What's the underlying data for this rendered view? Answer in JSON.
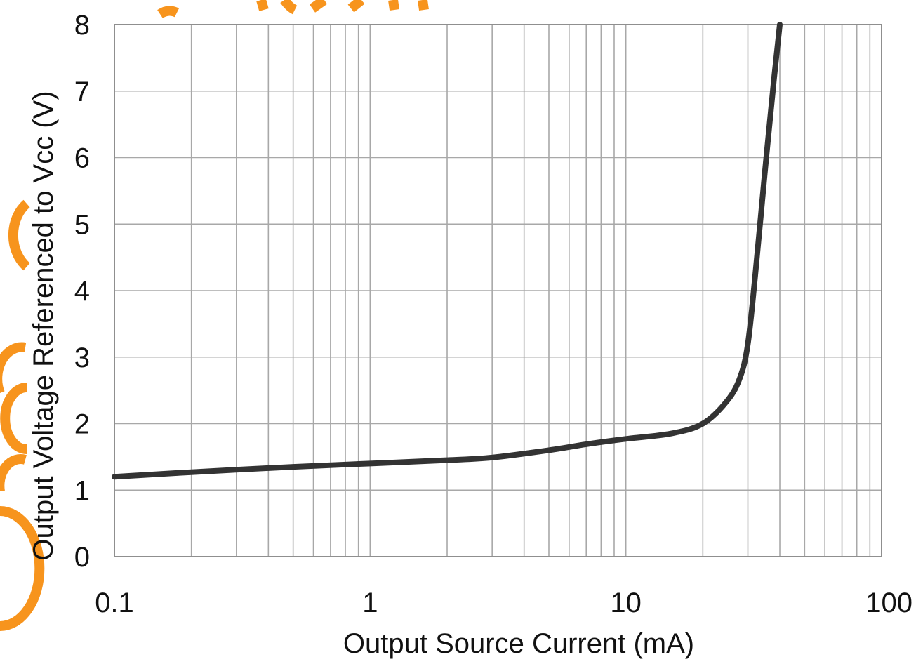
{
  "chart_data": {
    "type": "line",
    "title": "",
    "xlabel": "Output Source Current (mA)",
    "ylabel": "Output Voltage Referenced to Vcc (V)",
    "x_scale": "log",
    "xlim": [
      0.1,
      100
    ],
    "ylim": [
      0,
      8
    ],
    "x_ticks": [
      0.1,
      1,
      10,
      100
    ],
    "x_tick_labels": [
      "0.1",
      "1",
      "10",
      "100"
    ],
    "y_ticks": [
      0,
      1,
      2,
      3,
      4,
      5,
      6,
      7,
      8
    ],
    "y_tick_labels": [
      "0",
      "1",
      "2",
      "3",
      "4",
      "5",
      "6",
      "7",
      "8"
    ],
    "grid": true,
    "legend": "none",
    "series": [
      {
        "color": "#333333",
        "x": [
          0.1,
          0.2,
          0.5,
          1,
          2,
          3,
          5,
          7,
          10,
          15,
          20,
          25,
          28,
          30,
          32,
          35,
          38,
          40
        ],
        "y": [
          1.2,
          1.27,
          1.35,
          1.4,
          1.45,
          1.49,
          1.6,
          1.69,
          1.77,
          1.85,
          2.0,
          2.35,
          2.7,
          3.2,
          4.2,
          5.8,
          7.2,
          8.0
        ]
      }
    ]
  },
  "colors": {
    "series_line": "#333333",
    "grid": "#a8a8a8",
    "watermark": "#f7941d"
  }
}
